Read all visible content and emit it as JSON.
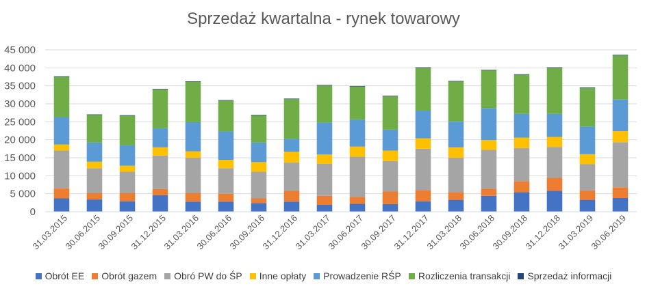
{
  "chart_data": {
    "type": "bar",
    "stacked": true,
    "title": "Sprzedaż kwartalna - rynek towarowy",
    "xlabel": "",
    "ylabel": "",
    "ylim": [
      0,
      45000
    ],
    "yticks": [
      0,
      5000,
      10000,
      15000,
      20000,
      25000,
      30000,
      35000,
      40000,
      45000
    ],
    "ytick_labels": [
      "0",
      "5 000",
      "10 000",
      "15 000",
      "20 000",
      "25 000",
      "30 000",
      "35 000",
      "40 000",
      "45 000"
    ],
    "grid": true,
    "legend_position": "bottom",
    "categories": [
      "31.03.2015",
      "30.06.2015",
      "30.09.2015",
      "31.12.2015",
      "31.03.2016",
      "30.06.2016",
      "30.09.2016",
      "31.12.2016",
      "31.03.2017",
      "30.06.2017",
      "30.09.2017",
      "31.12.2017",
      "31.03.2018",
      "30.06.2018",
      "30.09.2018",
      "31.12.2018",
      "31.03.2019",
      "30.06.2019"
    ],
    "series": [
      {
        "name": "Obrót EE",
        "color": "#4472C4",
        "values": [
          3700,
          3400,
          2900,
          4600,
          2800,
          2800,
          2400,
          2800,
          1900,
          2200,
          2100,
          2900,
          3300,
          4400,
          5400,
          5800,
          3300,
          3800
        ]
      },
      {
        "name": "Obrót gazem",
        "color": "#ED7D31",
        "values": [
          2800,
          1800,
          2300,
          1700,
          2400,
          2200,
          1300,
          3000,
          2500,
          1900,
          3500,
          3100,
          2100,
          2000,
          3100,
          3600,
          2600,
          3000
        ]
      },
      {
        "name": "Obró PW do ŚP",
        "color": "#A5A5A5",
        "values": [
          10500,
          6900,
          5900,
          9300,
          9800,
          7100,
          7400,
          7900,
          8900,
          11200,
          8500,
          11500,
          9600,
          10800,
          9200,
          8600,
          7300,
          12500
        ]
      },
      {
        "name": "Inne opłaty",
        "color": "#FFC000",
        "values": [
          1700,
          1800,
          1700,
          2300,
          1800,
          2300,
          2700,
          3000,
          2600,
          2800,
          2900,
          2900,
          2900,
          2700,
          2900,
          2800,
          2800,
          3100
        ]
      },
      {
        "name": "Prowadzenie RŚP",
        "color": "#5B9BD5",
        "values": [
          7600,
          5300,
          5700,
          5300,
          8100,
          7900,
          5400,
          3600,
          8900,
          7500,
          5800,
          7700,
          7200,
          8900,
          6600,
          6400,
          7700,
          8800
        ]
      },
      {
        "name": "Rozliczenia transakcji",
        "color": "#70AD47",
        "values": [
          11200,
          7700,
          8200,
          10800,
          11200,
          8600,
          7600,
          11000,
          10300,
          9200,
          9300,
          11900,
          11100,
          10500,
          10900,
          12800,
          10700,
          12300
        ]
      },
      {
        "name": "Sprzedaż informacji",
        "color": "#264478",
        "values": [
          150,
          150,
          150,
          150,
          150,
          150,
          150,
          150,
          150,
          150,
          150,
          150,
          150,
          150,
          150,
          150,
          150,
          150
        ]
      }
    ]
  },
  "colors": {
    "gridline": "#D9D9D9",
    "axis_line": "#D9D9D9",
    "tick_text": "#595959",
    "title_text": "#595959",
    "legend_text": "#404040"
  }
}
